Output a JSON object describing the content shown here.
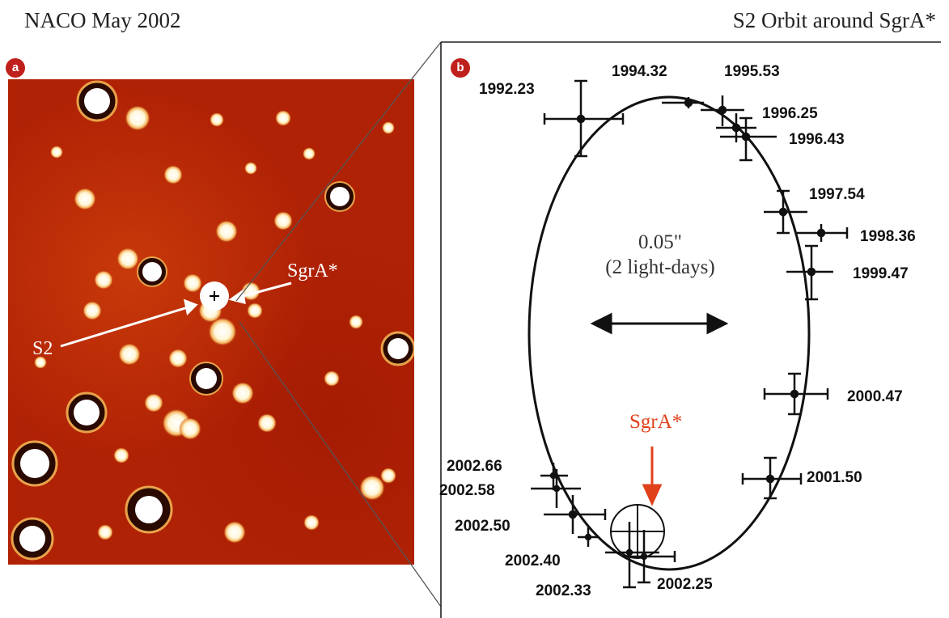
{
  "titles": {
    "left": "NACO May 2002",
    "right": "S2 Orbit around SgrA*"
  },
  "badges": {
    "a": "a",
    "b": "b"
  },
  "image_panel": {
    "labels": {
      "sgra": "SgrA*",
      "s2": "S2"
    },
    "background_color": "#b02205"
  },
  "orbit_panel": {
    "scale_bar": {
      "arcsec": "0.05\"",
      "days": "(2 light-days)"
    },
    "sgra_label": "SgrA*",
    "epochs": [
      "1992.23",
      "1994.32",
      "1995.53",
      "1996.25",
      "1996.43",
      "1997.54",
      "1998.36",
      "1999.47",
      "2000.47",
      "2001.50",
      "2002.66",
      "2002.58",
      "2002.50",
      "2002.40",
      "2002.33",
      "2002.25"
    ]
  },
  "colors": {
    "accent_red": "#c0201c",
    "sgra_arrow": "#e0401a"
  }
}
